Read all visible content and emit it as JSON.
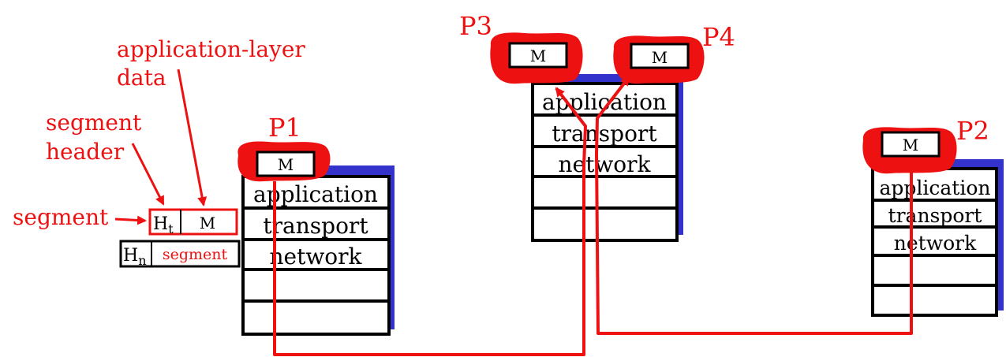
{
  "annotations": {
    "app_layer_data": [
      "application-layer",
      "data"
    ],
    "segment_header": [
      "segment",
      "header"
    ],
    "segment": "segment"
  },
  "segment_box": {
    "header": "H",
    "header_sub": "t",
    "message": "M"
  },
  "datagram_box": {
    "header": "H",
    "header_sub": "n",
    "payload": "segment"
  },
  "hosts": {
    "p1": {
      "label": "P1",
      "message": "M"
    },
    "p2": {
      "label": "P2",
      "message": "M"
    },
    "p3": {
      "label": "P3",
      "message": "M"
    },
    "p4": {
      "label": "P4",
      "message": "M"
    }
  },
  "layers": {
    "application": "application",
    "transport": "transport",
    "network": "network"
  },
  "colors": {
    "annotation": "#ee1111",
    "stack_shadow": "#3333cc",
    "stack_border": "#000000"
  }
}
